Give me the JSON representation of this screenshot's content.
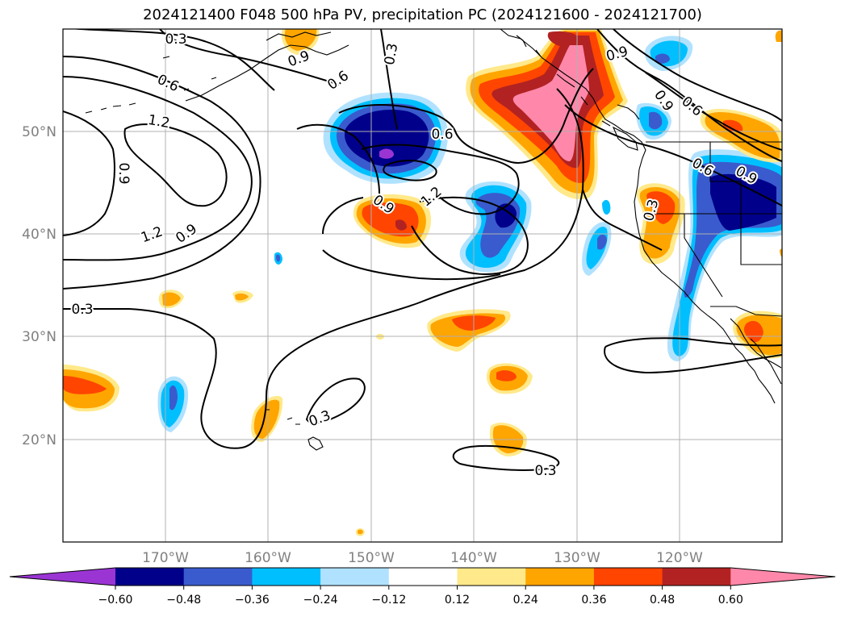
{
  "title": "2024121400 F048 500 hPa PV, precipitation PC (2024121600 - 2024121700)",
  "lat_labels": [
    "50°N",
    "40°N",
    "30°N",
    "20°N"
  ],
  "lon_labels": [
    "170°W",
    "160°W",
    "150°W",
    "140°W",
    "130°W",
    "120°W"
  ],
  "contour_labels": {
    "c03_top": "0.3",
    "c06_a": "0.6",
    "c09_a": "0.9",
    "c03_b": "0.3",
    "c06_b": "0.6",
    "c12_a": "1.2",
    "c09_b": "0.9",
    "c12_b": "1.2",
    "c09_c": "0.9",
    "c06_c": "0.6",
    "c09_d": "0.9",
    "c12_c": "1.2",
    "c09_e": "0.9",
    "c09_f": "0.9",
    "c06_d": "0.6",
    "c06_e": "0.6",
    "c09_g": "0.9",
    "c03_c": "0.3",
    "c03_d": "0.3",
    "c03_e": "0.3",
    "c03_f": "0.3"
  },
  "colorbar": {
    "colors": [
      "#9a35d4",
      "#00008b",
      "#3a5bcd",
      "#00bfff",
      "#b0e2ff",
      "#ffffff",
      "#ffe98a",
      "#ffa500",
      "#ff4500",
      "#b22222",
      "#ff88aa"
    ],
    "tick_labels": [
      "−0.60",
      "−0.48",
      "−0.36",
      "−0.24",
      "−0.12",
      "0.12",
      "0.24",
      "0.36",
      "0.48",
      "0.60"
    ]
  }
}
